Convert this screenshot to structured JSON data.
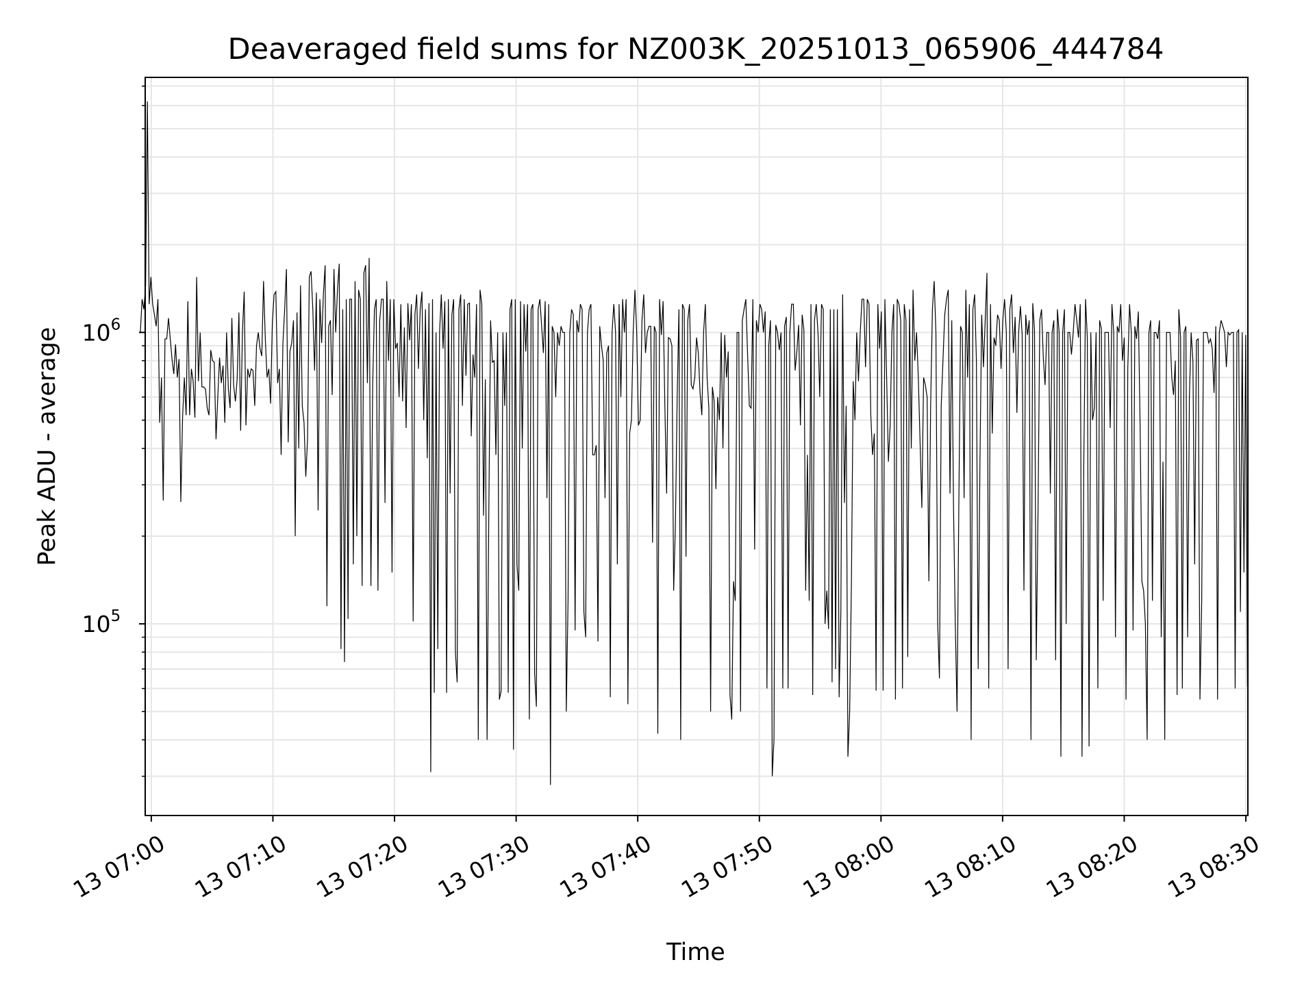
{
  "chart_data": {
    "type": "line",
    "title": "Deaveraged field sums for NZ003K_20251013_065906_444784",
    "xlabel": "Time",
    "ylabel": "Peak ADU - average",
    "y_scale": "log",
    "ylim": [
      22000,
      7500000
    ],
    "xlim": [
      "13 06:59:30",
      "13 08:30:10"
    ],
    "grid": true,
    "line_color": "#000000",
    "grid_color": "#e6e6e6",
    "x_ticks": [
      "13 07:00",
      "13 07:10",
      "13 07:20",
      "13 07:30",
      "13 07:40",
      "13 07:50",
      "13 08:00",
      "13 08:10",
      "13 08:20",
      "13 08:30"
    ],
    "y_ticks": [
      {
        "value": 100000,
        "base": "10",
        "exp": "5"
      },
      {
        "value": 1000000,
        "base": "10",
        "exp": "6"
      }
    ],
    "x_start": "13 06:59:06",
    "x_end": "13 08:30:08",
    "y": [
      1000000,
      1300000,
      1200000,
      1450000,
      6200000,
      1250000,
      1550000,
      1250000,
      1150000,
      1050000,
      1300000,
      490000,
      700000,
      265000,
      950000,
      950000,
      1120000,
      950000,
      810000,
      720000,
      910000,
      700000,
      810000,
      262000,
      510000,
      700000,
      520000,
      1280000,
      520000,
      750000,
      680000,
      510000,
      1550000,
      680000,
      1000000,
      650000,
      650000,
      640000,
      550000,
      520000,
      870000,
      800000,
      790000,
      430000,
      600000,
      820000,
      670000,
      770000,
      490000,
      1000000,
      640000,
      550000,
      1120000,
      660000,
      580000,
      690000,
      1170000,
      460000,
      1000000,
      1380000,
      480000,
      750000,
      700000,
      750000,
      740000,
      560000,
      900000,
      1000000,
      880000,
      830000,
      1500000,
      950000,
      700000,
      750000,
      570000,
      1080000,
      1350000,
      1380000,
      670000,
      750000,
      380000,
      920000,
      1200000,
      1650000,
      420000,
      860000,
      920000,
      1100000,
      200000,
      1170000,
      400000,
      1450000,
      560000,
      490000,
      320000,
      430000,
      1550000,
      1620000,
      1200000,
      740000,
      1370000,
      245000,
      1300000,
      920000,
      1350000,
      1700000,
      115000,
      1050000,
      1100000,
      610000,
      1650000,
      1000000,
      1400000,
      1720000,
      82000,
      1200000,
      74000,
      1300000,
      104000,
      1300000,
      1300000,
      160000,
      1500000,
      200000,
      1400000,
      1300000,
      135000,
      1600000,
      1700000,
      670000,
      1800000,
      135000,
      660000,
      1200000,
      1300000,
      130000,
      1100000,
      1300000,
      1300000,
      260000,
      1500000,
      800000,
      1300000,
      150000,
      1300000,
      880000,
      920000,
      600000,
      1250000,
      580000,
      1040000,
      470000,
      1260000,
      940000,
      1250000,
      102000,
      1150000,
      1350000,
      750000,
      1200000,
      1380000,
      500000,
      1200000,
      370000,
      1260000,
      31000,
      1300000,
      58000,
      1000000,
      82000,
      1000000,
      1350000,
      880000,
      1280000,
      58000,
      1300000,
      280000,
      1150000,
      1300000,
      80000,
      63000,
      1200000,
      1350000,
      560000,
      1300000,
      710000,
      1250000,
      1260000,
      440000,
      840000,
      700000,
      1250000,
      40000,
      1400000,
      1250000,
      235000,
      690000,
      40000,
      250000,
      1100000,
      790000,
      800000,
      380000,
      1000000,
      55000,
      59000,
      1000000,
      560000,
      1000000,
      58000,
      1200000,
      1300000,
      37000,
      1300000,
      160000,
      130000,
      1280000,
      400000,
      1250000,
      860000,
      1250000,
      47000,
      1200000,
      1250000,
      68000,
      52000,
      1200000,
      1300000,
      1050000,
      850000,
      1280000,
      270000,
      1250000,
      28000,
      1050000,
      1000000,
      600000,
      1000000,
      900000,
      1050000,
      1000000,
      1000000,
      50000,
      120000,
      1000000,
      1200000,
      1150000,
      95000,
      1100000,
      1000000,
      1250000,
      1200000,
      110000,
      90000,
      1000000,
      1200000,
      1250000,
      380000,
      380000,
      410000,
      87000,
      1050000,
      900000,
      800000,
      270000,
      850000,
      900000,
      56000,
      1000000,
      1250000,
      1000000,
      160000,
      1250000,
      600000,
      1300000,
      1000000,
      1300000,
      53000,
      450000,
      500000,
      1000000,
      1400000,
      1000000,
      480000,
      500000,
      1100000,
      1350000,
      850000,
      1000000,
      1050000,
      1050000,
      190000,
      1050000,
      1000000,
      42000,
      1300000,
      980000,
      1280000,
      560000,
      280000,
      960000,
      950000,
      900000,
      130000,
      220000,
      600000,
      1200000,
      40000,
      1250000,
      1200000,
      170000,
      1100000,
      1250000,
      660000,
      640000,
      700000,
      960000,
      850000,
      620000,
      520000,
      1000000,
      1250000,
      700000,
      550000,
      50000,
      650000,
      580000,
      290000,
      600000,
      500000,
      1000000,
      400000,
      980000,
      700000,
      860000,
      57000,
      47000,
      140000,
      120000,
      1000000,
      1000000,
      50000,
      1100000,
      1200000,
      1300000,
      840000,
      560000,
      550000,
      1300000,
      180000,
      1100000,
      1000000,
      1250000,
      1200000,
      1000000,
      1180000,
      60000,
      900000,
      1100000,
      30000,
      40000,
      1060000,
      1000000,
      870000,
      1000000,
      60000,
      1050000,
      1130000,
      60000,
      1000000,
      1250000,
      1250000,
      740000,
      860000,
      1060000,
      480000,
      1150000,
      1020000,
      130000,
      380000,
      120000,
      1250000,
      57000,
      1100000,
      1250000,
      1000000,
      600000,
      1250000,
      1200000,
      100000,
      130000,
      96000,
      1200000,
      63000,
      1200000,
      70000,
      1200000,
      56000,
      110000,
      1350000,
      260000,
      560000,
      35000,
      50000,
      140000,
      680000,
      500000,
      1000000,
      680000,
      1000000,
      1300000,
      1300000,
      760000,
      1300000,
      1250000,
      520000,
      380000,
      450000,
      59000,
      1250000,
      880000,
      1180000,
      59000,
      1300000,
      700000,
      360000,
      480000,
      1000000,
      1250000,
      55000,
      1300000,
      1250000,
      1100000,
      60000,
      1250000,
      1100000,
      77000,
      1200000,
      400000,
      1400000,
      800000,
      1000000,
      700000,
      420000,
      250000,
      700000,
      660000,
      600000,
      140000,
      560000,
      1200000,
      1500000,
      1000000,
      100000,
      65000,
      560000,
      800000,
      1150000,
      1300000,
      1400000,
      280000,
      1100000,
      250000,
      100000,
      50000,
      250000,
      1050000,
      1000000,
      270000,
      1400000,
      700000,
      1250000,
      40000,
      1200000,
      1350000,
      800000,
      70000,
      350000,
      1150000,
      760000,
      1100000,
      1600000,
      60000,
      1250000,
      450000,
      960000,
      900000,
      1150000,
      1100000,
      750000,
      1100000,
      1300000,
      1000000,
      70000,
      1200000,
      1350000,
      850000,
      1130000,
      530000,
      1000000,
      1230000,
      980000,
      130000,
      1150000,
      980000,
      1100000,
      40000,
      1260000,
      1020000,
      75000,
      240000,
      1100000,
      1200000,
      820000,
      660000,
      1000000,
      1000000,
      280000,
      1000000,
      1100000,
      75000,
      1200000,
      1000000,
      35000,
      1000000,
      1200000,
      100000,
      1000000,
      1000000,
      840000,
      1000000,
      1250000,
      1100000,
      960000,
      1250000,
      35000,
      350000,
      1300000,
      960000,
      38000,
      1000000,
      500000,
      550000,
      1000000,
      60000,
      1100000,
      1030000,
      120000,
      1000000,
      1000000,
      1000000,
      470000,
      1250000,
      1000000,
      90000,
      1050000,
      1000000,
      1250000,
      800000,
      960000,
      55000,
      750000,
      1250000,
      1000000,
      95000,
      1050000,
      950000,
      1180000,
      480000,
      140000,
      130000,
      100000,
      40000,
      1000000,
      1100000,
      120000,
      1000000,
      1000000,
      950000,
      1100000,
      90000,
      360000,
      40000,
      1000000,
      1000000,
      1000000,
      700000,
      610000,
      800000,
      57000,
      1200000,
      960000,
      60000,
      1000000,
      1050000,
      90000,
      600000,
      1000000,
      800000,
      160000,
      940000,
      950000,
      55000,
      120000,
      1000000,
      1000000,
      1000000,
      920000,
      950000,
      880000,
      620000,
      1050000,
      55000,
      1000000,
      1100000,
      1050000,
      1000000,
      760000,
      1000000,
      980000,
      1000000,
      1000000,
      60000,
      1000000,
      1020000,
      110000,
      1000000,
      150000,
      980000,
      61000
    ]
  }
}
